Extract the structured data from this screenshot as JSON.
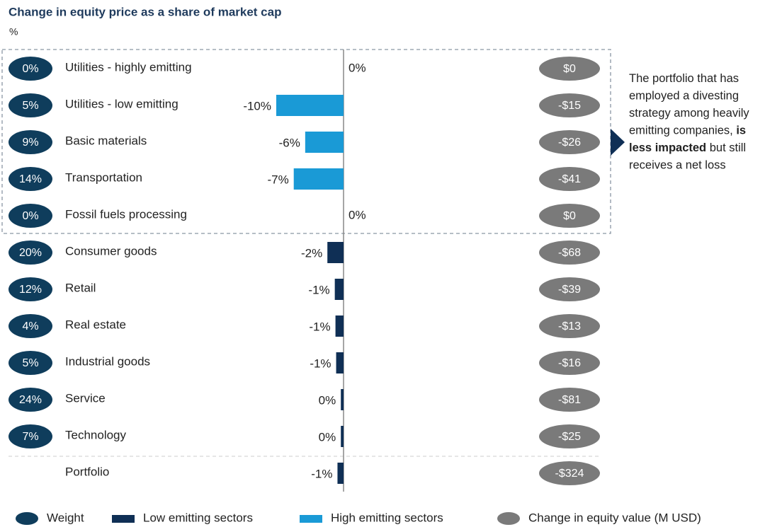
{
  "chart_data": {
    "type": "bar",
    "orientation": "horizontal",
    "title": "Change in equity price as a share of market cap",
    "subtitle": "%",
    "categories": [
      "Utilities - highly emitting",
      "Utilities - low emitting",
      "Basic materials",
      "Transportation",
      "Fossil fuels processing",
      "Consumer goods",
      "Retail",
      "Real estate",
      "Industrial goods",
      "Service",
      "Technology",
      "Portfolio"
    ],
    "values": [
      0,
      -10,
      -5.7,
      -7.4,
      0,
      -2.4,
      -1.3,
      -1.2,
      -1.1,
      -0.4,
      -0.4,
      -0.9
    ],
    "value_labels": [
      "0%",
      "-10%",
      "-6%",
      "-7%",
      "0%",
      "-2%",
      "-1%",
      "-1%",
      "-1%",
      "0%",
      "0%",
      "-1%"
    ],
    "colors": [
      "#1a9ad6",
      "#1a9ad6",
      "#1a9ad6",
      "#1a9ad6",
      "#1a9ad6",
      "#0f2f55",
      "#0f2f55",
      "#0f2f55",
      "#0f2f55",
      "#0f2f55",
      "#0f2f55",
      "#0f2f55"
    ],
    "xlim": [
      -10,
      0
    ],
    "weights": [
      0,
      5,
      9,
      14,
      0,
      20,
      12,
      4,
      5,
      24,
      7,
      null
    ],
    "weight_labels": [
      "0%",
      "5%",
      "9%",
      "14%",
      "0%",
      "20%",
      "12%",
      "4%",
      "5%",
      "24%",
      "7%",
      null
    ],
    "weight_color": "#0f3d5c",
    "equity_values": [
      0,
      -15,
      -26,
      -41,
      0,
      -68,
      -39,
      -13,
      -16,
      -81,
      -25,
      -324
    ],
    "equity_labels": [
      "$0",
      "-$15",
      "-$26",
      "-$41",
      "$0",
      "-$68",
      "-$39",
      "-$13",
      "-$16",
      "-$81",
      "-$25",
      "-$324"
    ],
    "equity_color": "#7a7a7a",
    "annotation": [
      [
        {
          "text": "The portfolio that has",
          "bold": false
        }
      ],
      [
        {
          "text": "employed a divesting",
          "bold": false
        }
      ],
      [
        {
          "text": "strategy among heavily",
          "bold": false
        }
      ],
      [
        {
          "text": "emitting companies, ",
          "bold": false
        },
        {
          "text": "is",
          "bold": true
        }
      ],
      [
        {
          "text": "less impacted",
          "bold": true
        },
        {
          "text": " but still",
          "bold": false
        }
      ],
      [
        {
          "text": "receives a net loss",
          "bold": false
        }
      ]
    ],
    "legend": [
      {
        "label": "Weight",
        "shape": "ellipse",
        "color": "#0f3d5c"
      },
      {
        "label": "Low emitting sectors",
        "shape": "rect",
        "color": "#0f2f55"
      },
      {
        "label": "High emitting sectors",
        "shape": "rect",
        "color": "#1a9ad6"
      },
      {
        "label": "Change in equity value (M USD)",
        "shape": "ellipse",
        "color": "#7a7a7a"
      }
    ]
  }
}
